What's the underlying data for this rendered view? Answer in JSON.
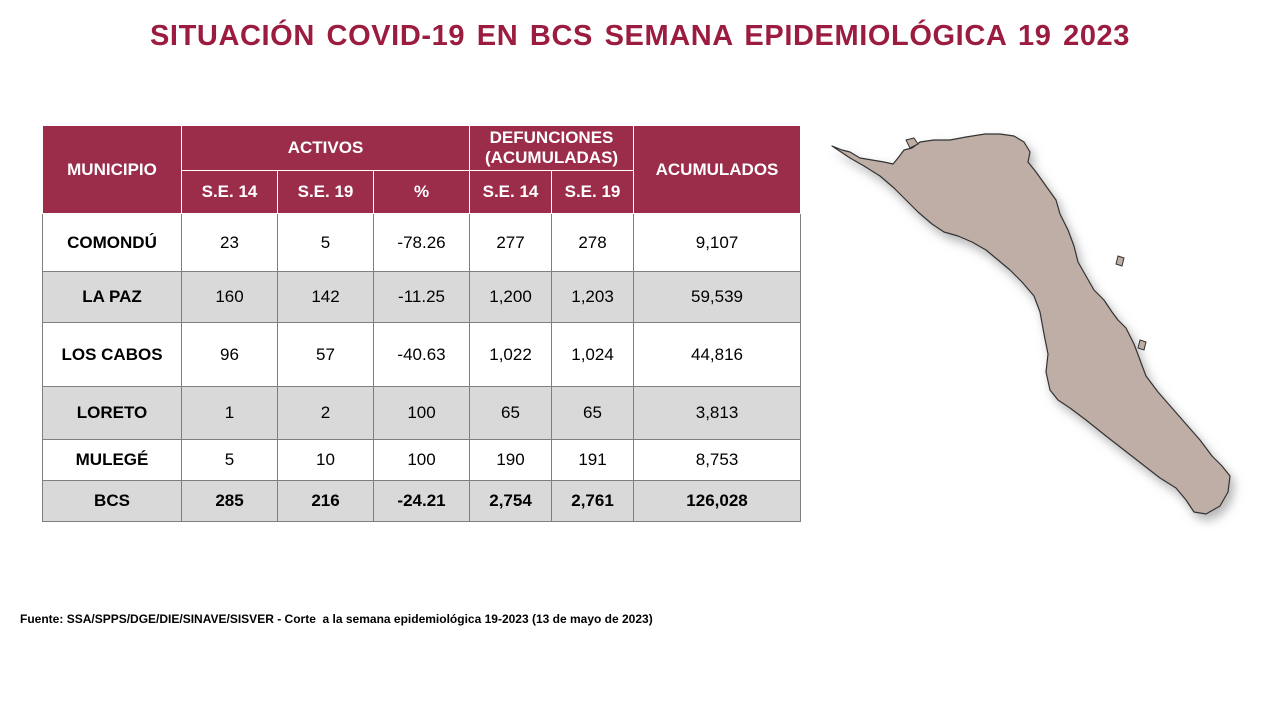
{
  "title": "SITUACIÓN COVID-19 EN BCS SEMANA EPIDEMIOLÓGICA 19 2023",
  "table": {
    "headers": {
      "municipio": "MUNICIPIO",
      "activos": "ACTIVOS",
      "defunciones_line1": "DEFUNCIONES",
      "defunciones_line2": "(ACUMULADAS)",
      "acumulados": "ACUMULADOS",
      "se14": "S.E. 14",
      "se19": "S.E. 19",
      "pct": "%",
      "def_se14": "S.E. 14",
      "def_se19": "S.E. 19"
    },
    "rows": [
      {
        "municipio": "COMONDÚ",
        "act_se14": "23",
        "act_se19": "5",
        "pct": "-78.26",
        "def_se14": "277",
        "def_se19": "278",
        "acumulados": "9,107"
      },
      {
        "municipio": "LA PAZ",
        "act_se14": "160",
        "act_se19": "142",
        "pct": "-11.25",
        "def_se14": "1,200",
        "def_se19": "1,203",
        "acumulados": "59,539"
      },
      {
        "municipio": "LOS CABOS",
        "act_se14": "96",
        "act_se19": "57",
        "pct": "-40.63",
        "def_se14": "1,022",
        "def_se19": "1,024",
        "acumulados": "44,816"
      },
      {
        "municipio": "LORETO",
        "act_se14": "1",
        "act_se19": "2",
        "pct": "100",
        "def_se14": "65",
        "def_se19": "65",
        "acumulados": "3,813"
      },
      {
        "municipio": "MULEGÉ",
        "act_se14": "5",
        "act_se19": "10",
        "pct": "100",
        "def_se14": "190",
        "def_se19": "191",
        "acumulados": "8,753"
      },
      {
        "municipio": "BCS",
        "act_se14": "285",
        "act_se19": "216",
        "pct": "-24.21",
        "def_se14": "2,754",
        "def_se19": "2,761",
        "acumulados": "126,028"
      }
    ]
  },
  "source": {
    "label": "Fuente:",
    "org": "SSA/SPPS/DGE/DIE/SINAVE/SISVER",
    "note": "- Corte  a la semana epidemiológica 19-2023 (13 de mayo de 2023)"
  },
  "colors": {
    "title": "#9b1c3f",
    "header_bg": "#9b2c4a",
    "row_shade": "#d9d9d9",
    "map_fill": "#bfaea6"
  },
  "map": {
    "icon": "baja-california-sur-map"
  }
}
